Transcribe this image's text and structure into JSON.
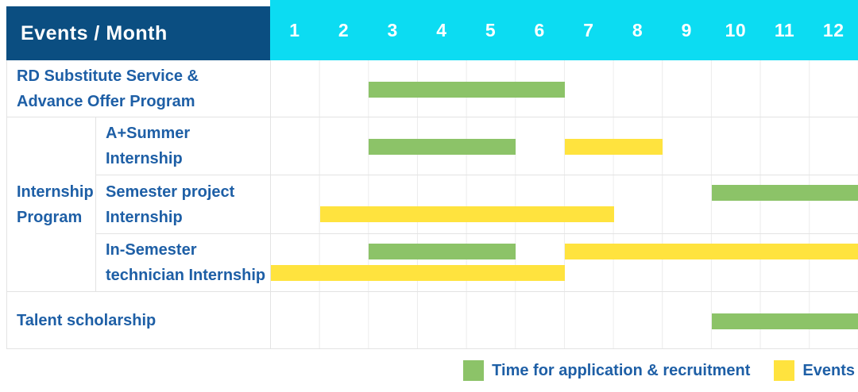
{
  "header": {
    "title": "Events / Month",
    "months": [
      "1",
      "2",
      "3",
      "4",
      "5",
      "6",
      "7",
      "8",
      "9",
      "10",
      "11",
      "12"
    ]
  },
  "group": {
    "line1": "Internship",
    "line2": "Program"
  },
  "rows": [
    {
      "line1": "RD Substitute Service &",
      "line2": "Advance Offer Program"
    },
    {
      "line1": "A+Summer",
      "line2": "Internship"
    },
    {
      "line1": "Semester project",
      "line2": "Internship"
    },
    {
      "line1": "In-Semester",
      "line2": "technician Internship"
    },
    {
      "line1": "Talent scholarship"
    }
  ],
  "legend": {
    "items": [
      {
        "label": "Time for application & recruitment",
        "color": "#8cc368",
        "type": "application"
      },
      {
        "label": "Events",
        "color": "#ffe33e",
        "type": "event"
      }
    ]
  },
  "colors": {
    "corner_header_bg": "#0b4e81",
    "months_header_bg": "#0cdcf2",
    "label_text": "#1e5fa6",
    "application_green": "#8cc368",
    "event_yellow": "#ffe33e",
    "grid_line": "#ececec"
  },
  "chart_data": {
    "type": "bar",
    "variant": "gantt",
    "title": "Events / Month",
    "x_categories": [
      "1",
      "2",
      "3",
      "4",
      "5",
      "6",
      "7",
      "8",
      "9",
      "10",
      "11",
      "12"
    ],
    "x_range": [
      1,
      12
    ],
    "grid": true,
    "legend_position": "bottom-right",
    "series_legend": [
      "Time for application & recruitment",
      "Events"
    ],
    "rows": [
      {
        "label": "RD Substitute Service & Advance Offer Program",
        "bars": [
          {
            "type": "application",
            "start": 3,
            "end": 6,
            "line": "mid"
          }
        ]
      },
      {
        "group": "Internship Program",
        "label": "A+Summer Internship",
        "bars": [
          {
            "type": "application",
            "start": 3,
            "end": 5,
            "line": "mid"
          },
          {
            "type": "event",
            "start": 7,
            "end": 8,
            "line": "mid"
          }
        ]
      },
      {
        "group": "Internship Program",
        "label": "Semester project Internship",
        "bars": [
          {
            "type": "application",
            "start": 10,
            "end": 12,
            "line": "top"
          },
          {
            "type": "event",
            "start": 2,
            "end": 7,
            "line": "bottom"
          }
        ]
      },
      {
        "group": "Internship Program",
        "label": "In-Semester technician Internship",
        "bars": [
          {
            "type": "application",
            "start": 3,
            "end": 5,
            "line": "top"
          },
          {
            "type": "event",
            "start": 7,
            "end": 12,
            "line": "top"
          },
          {
            "type": "event",
            "start": 1,
            "end": 6,
            "line": "bottom"
          }
        ]
      },
      {
        "label": "Talent scholarship",
        "bars": [
          {
            "type": "application",
            "start": 10,
            "end": 12,
            "line": "mid"
          }
        ]
      }
    ]
  }
}
